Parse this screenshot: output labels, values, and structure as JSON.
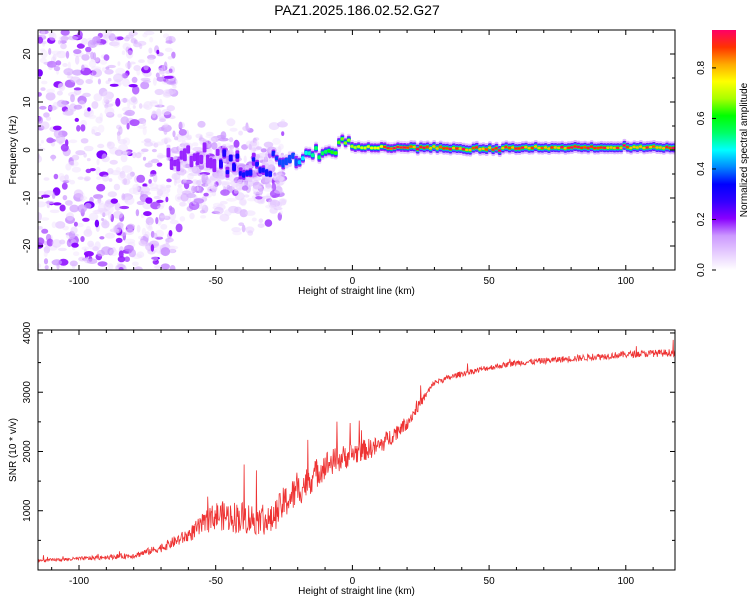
{
  "title": "PAZ1.2025.186.02.52.G27",
  "colors": {
    "snr_line": "#ee3333",
    "axis": "#000000",
    "colormap": [
      "#ffffff",
      "#e6ccff",
      "#cc99ff",
      "#8800ff",
      "#3300ff",
      "#0000ff",
      "#0088ff",
      "#00ffff",
      "#00ff66",
      "#00ff00",
      "#aaff00",
      "#ffff00",
      "#ffaa00",
      "#ff3300",
      "#ff0066"
    ]
  },
  "chart_data": [
    {
      "type": "heatmap",
      "xlabel": "Height of straight line (km)",
      "ylabel": "Frequency (Hz)",
      "xlim": [
        -115,
        118
      ],
      "ylim": [
        -25,
        25
      ],
      "xticks": [
        -100,
        -50,
        0,
        50,
        100
      ],
      "yticks": [
        -20,
        -10,
        0,
        10,
        20
      ],
      "colorbar": {
        "label": "Normalized spectral amplitude",
        "range": [
          0,
          0.95
        ],
        "ticks": [
          "0.0",
          "0.2",
          "0.4",
          "0.6",
          "0.8"
        ],
        "tick_values": [
          0,
          0.2,
          0.4,
          0.6,
          0.8
        ]
      },
      "ridge": {
        "x": [
          -110,
          -80,
          -60,
          -50,
          -40,
          -30,
          -20,
          -10,
          0,
          20,
          50,
          80,
          118
        ],
        "freq": [
          -3,
          -3.5,
          -1,
          -2,
          -3.5,
          -3,
          -1,
          0.5,
          0.5,
          0.5,
          0.3,
          0.5,
          0.5
        ],
        "peak_amplitude": [
          0.1,
          0.2,
          0.3,
          0.3,
          0.35,
          0.35,
          0.45,
          0.6,
          0.7,
          0.8,
          0.8,
          0.9,
          0.9
        ]
      },
      "scatter_regions": [
        {
          "x_range": [
            -115,
            -65
          ],
          "freq_range": [
            -25,
            25
          ],
          "max_amplitude": 0.18
        },
        {
          "x_range": [
            -65,
            -25
          ],
          "freq_range": [
            -22,
            8
          ],
          "max_amplitude": 0.15
        }
      ]
    },
    {
      "type": "line",
      "xlabel": "Height of straight line (km)",
      "ylabel": "SNR (10 * v/v)",
      "xlim": [
        -115,
        118
      ],
      "ylim": [
        0,
        4050
      ],
      "xticks": [
        -100,
        -50,
        0,
        50,
        100
      ],
      "yticks": [
        1000,
        2000,
        3000,
        4000
      ],
      "series": [
        {
          "x": [
            -115,
            -100,
            -80,
            -70,
            -60,
            -50,
            -40,
            -30,
            -25,
            -20,
            -10,
            0,
            10,
            20,
            25,
            30,
            40,
            50,
            60,
            80,
            100,
            118
          ],
          "y": [
            150,
            180,
            230,
            350,
            550,
            850,
            800,
            750,
            1050,
            1250,
            1700,
            1900,
            2050,
            2450,
            2800,
            3150,
            3300,
            3400,
            3480,
            3550,
            3620,
            3650
          ],
          "noise": [
            30,
            40,
            60,
            90,
            150,
            300,
            350,
            300,
            350,
            350,
            300,
            250,
            200,
            150,
            100,
            60,
            60,
            60,
            60,
            70,
            70,
            80
          ]
        }
      ]
    }
  ]
}
